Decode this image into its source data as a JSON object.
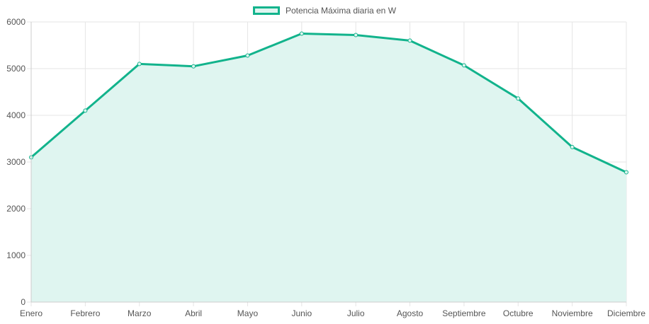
{
  "legend": {
    "label": "Potencia Máxima diaria en W"
  },
  "colors": {
    "line": "#12b38c",
    "fill": "#dff5f0",
    "grid": "#e5e5e5",
    "tick_text": "#555555"
  },
  "chart_data": {
    "type": "area",
    "categories": [
      "Enero",
      "Febrero",
      "Marzo",
      "Abril",
      "Mayo",
      "Junio",
      "Julio",
      "Agosto",
      "Septiembre",
      "Octubre",
      "Noviembre",
      "Diciembre"
    ],
    "series": [
      {
        "name": "Potencia Máxima diaria en W",
        "values": [
          3100,
          4100,
          5100,
          5050,
          5280,
          5750,
          5720,
          5600,
          5070,
          4360,
          3320,
          2780
        ]
      }
    ],
    "ylim": [
      0,
      6000
    ],
    "yticks": [
      0,
      1000,
      2000,
      3000,
      4000,
      5000,
      6000
    ],
    "grid": true,
    "legend_position": "top-center"
  }
}
